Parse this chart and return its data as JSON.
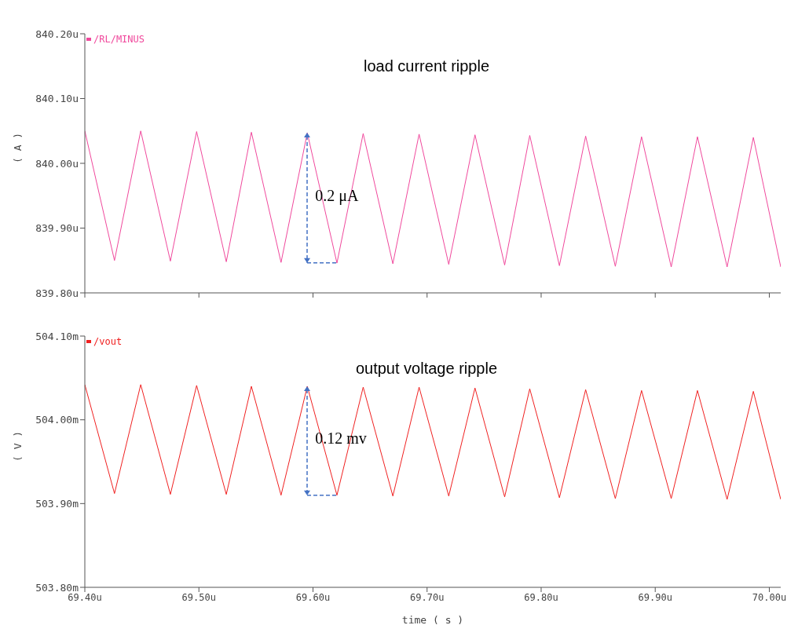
{
  "chart_data": [
    {
      "type": "line",
      "ylabel": "( A )",
      "legend": "top left",
      "marker": "none",
      "line_style": "solid",
      "grid": false,
      "tick_labels": "y",
      "annotations": [
        "load current ripple",
        "0.2 μA"
      ],
      "xlim": [
        69.4,
        70.01
      ],
      "xticks": [
        {
          "value": 69.4,
          "label": null
        },
        {
          "value": 69.5,
          "label": null
        },
        {
          "value": 69.6,
          "label": null
        },
        {
          "value": 69.7,
          "label": null
        },
        {
          "value": 69.8,
          "label": null
        },
        {
          "value": 69.9,
          "label": null
        },
        {
          "value": 70.0,
          "label": null
        }
      ],
      "ylim": [
        839.8,
        840.2
      ],
      "yticks": [
        {
          "value": 839.8,
          "label": "839.80u"
        },
        {
          "value": 839.9,
          "label": "839.90u"
        },
        {
          "value": 840.0,
          "label": "840.00u"
        },
        {
          "value": 840.1,
          "label": "840.10u"
        },
        {
          "value": 840.2,
          "label": "840.20u"
        }
      ],
      "series": [
        {
          "name": "/RL/MINUS",
          "color": "#f0489c",
          "x": [
            69.4,
            69.426,
            69.449,
            69.475,
            69.498,
            69.524,
            69.546,
            69.572,
            69.595,
            69.621,
            69.644,
            69.67,
            69.693,
            69.719,
            69.742,
            69.768,
            69.79,
            69.816,
            69.839,
            69.865,
            69.888,
            69.914,
            69.937,
            69.963,
            69.986,
            70.01
          ],
          "values": [
            840.05,
            839.85,
            840.05,
            839.849,
            840.049,
            839.848,
            840.048,
            839.847,
            840.047,
            839.846,
            840.046,
            839.845,
            840.045,
            839.844,
            840.044,
            839.843,
            840.043,
            839.842,
            840.042,
            839.841,
            840.041,
            839.84,
            840.041,
            839.84,
            840.04,
            839.84
          ]
        }
      ]
    },
    {
      "type": "line",
      "ylabel": "( V )",
      "xlabel": "time ( s )",
      "legend": "top left",
      "marker": "none",
      "line_style": "solid",
      "grid": false,
      "annotations": [
        "output voltage ripple",
        "0.12 mv"
      ],
      "xlim": [
        69.4,
        70.01
      ],
      "xticks": [
        {
          "value": 69.4,
          "label": "69.40u"
        },
        {
          "value": 69.5,
          "label": "69.50u"
        },
        {
          "value": 69.6,
          "label": "69.60u"
        },
        {
          "value": 69.7,
          "label": "69.70u"
        },
        {
          "value": 69.8,
          "label": "69.80u"
        },
        {
          "value": 69.9,
          "label": "69.90u"
        },
        {
          "value": 70.0,
          "label": "70.00u"
        }
      ],
      "ylim": [
        503.8,
        504.1
      ],
      "yticks": [
        {
          "value": 503.8,
          "label": "503.80m"
        },
        {
          "value": 503.9,
          "label": "503.90m"
        },
        {
          "value": 504.0,
          "label": "504.00m"
        },
        {
          "value": 504.1,
          "label": "504.10m"
        }
      ],
      "series": [
        {
          "name": "/vout",
          "color": "#f02020",
          "x": [
            69.4,
            69.426,
            69.449,
            69.475,
            69.498,
            69.524,
            69.546,
            69.572,
            69.595,
            69.621,
            69.644,
            69.67,
            69.693,
            69.719,
            69.742,
            69.768,
            69.79,
            69.816,
            69.839,
            69.865,
            69.888,
            69.914,
            69.937,
            69.963,
            69.986,
            70.01
          ],
          "values": [
            504.042,
            503.912,
            504.042,
            503.911,
            504.041,
            503.911,
            504.04,
            503.91,
            504.04,
            503.91,
            504.039,
            503.909,
            504.039,
            503.909,
            504.038,
            503.908,
            504.037,
            503.907,
            504.036,
            503.906,
            504.035,
            503.906,
            504.035,
            503.905,
            504.034,
            503.905
          ]
        }
      ]
    }
  ]
}
